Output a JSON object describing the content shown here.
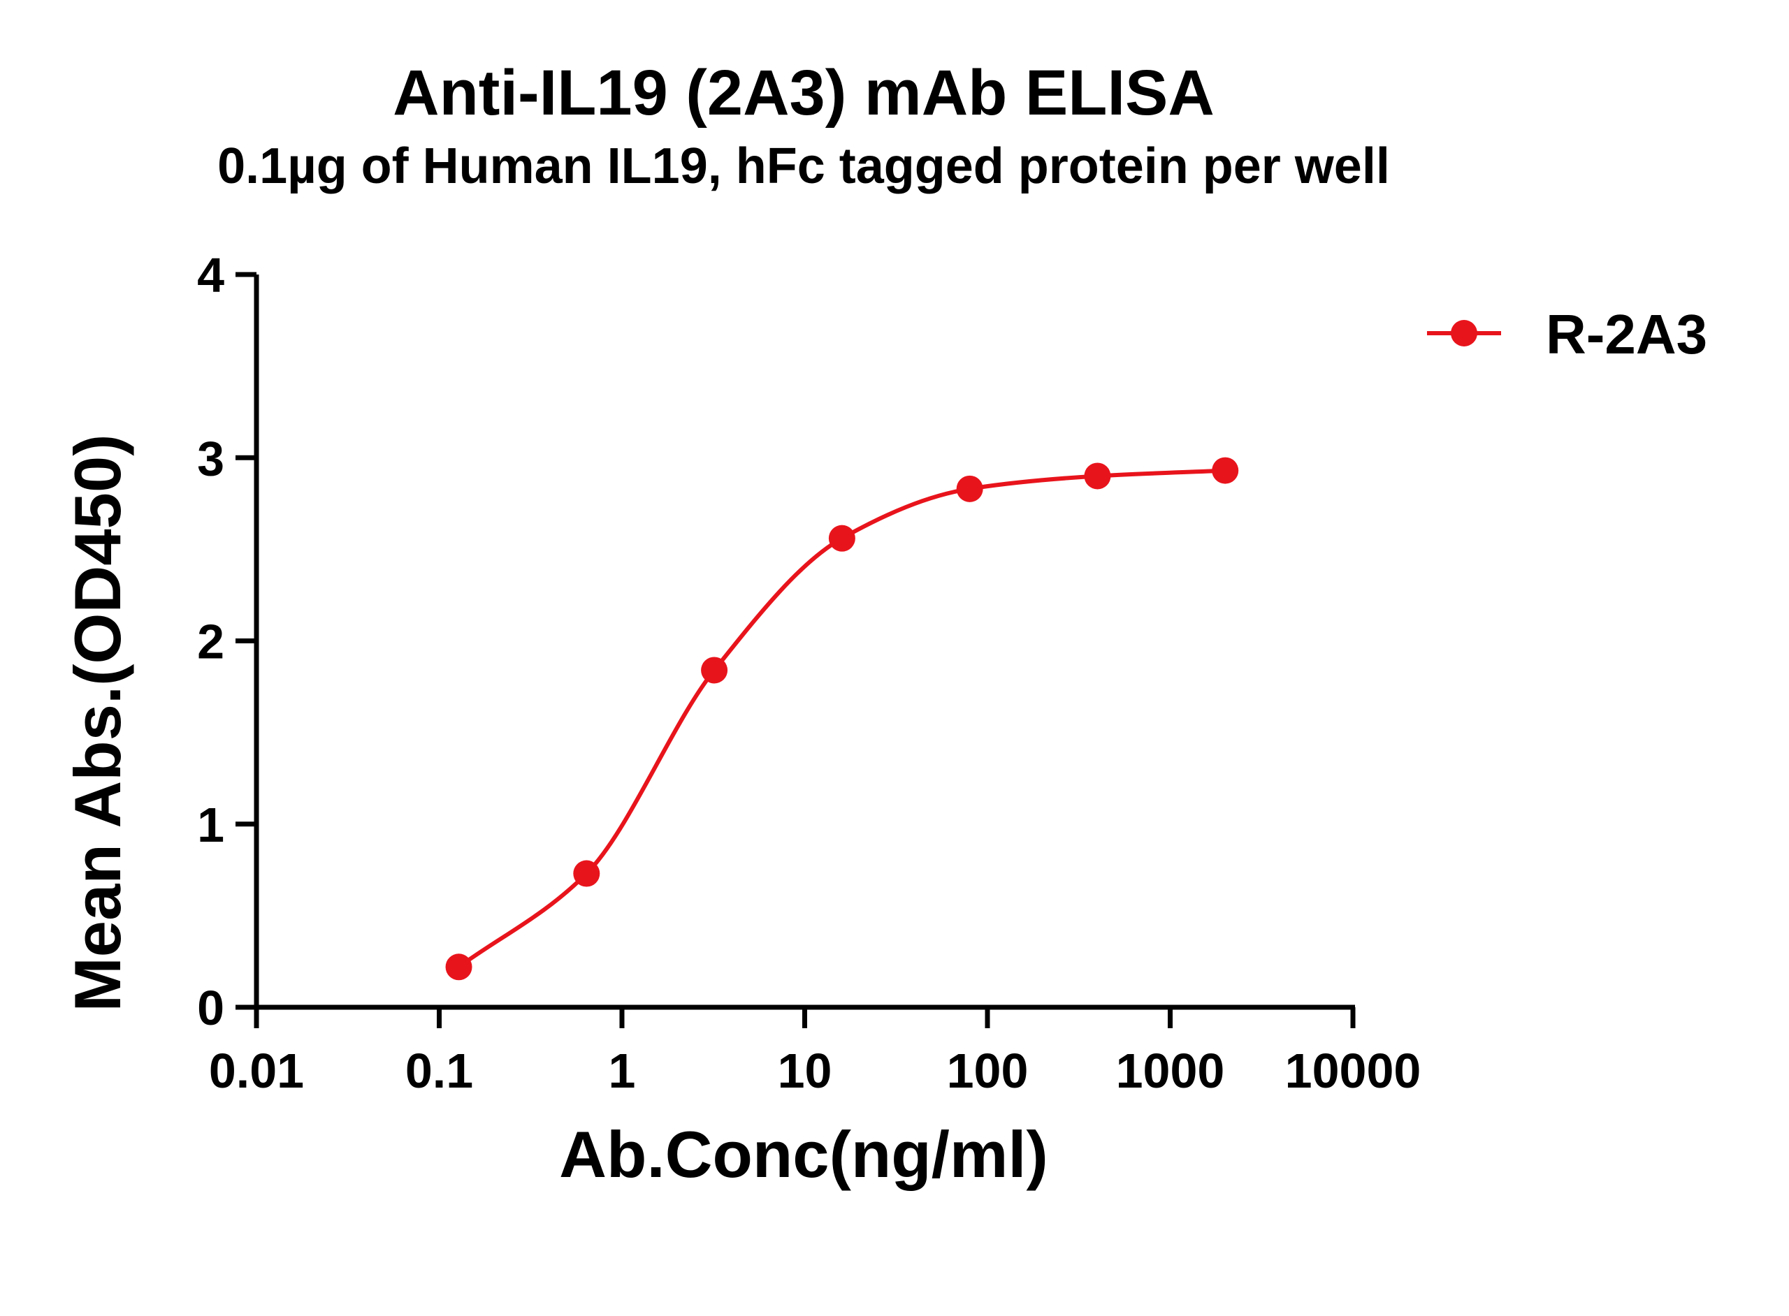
{
  "chart_data": {
    "type": "line",
    "title": "Anti-IL19 (2A3) mAb ELISA",
    "subtitle": "0.1µg of Human IL19, hFc tagged protein per well",
    "xlabel": "Ab.Conc(ng/ml)",
    "ylabel": "Mean Abs.(OD450)",
    "x_scale": "log",
    "xlim": [
      0.01,
      10000
    ],
    "ylim": [
      0,
      4
    ],
    "x_ticks": [
      "0.01",
      "0.1",
      "1",
      "10",
      "100",
      "1000",
      "10000"
    ],
    "y_ticks": [
      "0",
      "1",
      "2",
      "3",
      "4"
    ],
    "grid": false,
    "legend_position": "top-right",
    "series": [
      {
        "name": "R-2A3",
        "color": "#e8141c",
        "marker": "circle",
        "points": [
          {
            "x": 0.128,
            "y": 0.22
          },
          {
            "x": 0.64,
            "y": 0.73
          },
          {
            "x": 3.2,
            "y": 1.84
          },
          {
            "x": 16,
            "y": 2.56
          },
          {
            "x": 80,
            "y": 2.83
          },
          {
            "x": 400,
            "y": 2.9
          },
          {
            "x": 2000,
            "y": 2.93
          }
        ]
      }
    ]
  }
}
